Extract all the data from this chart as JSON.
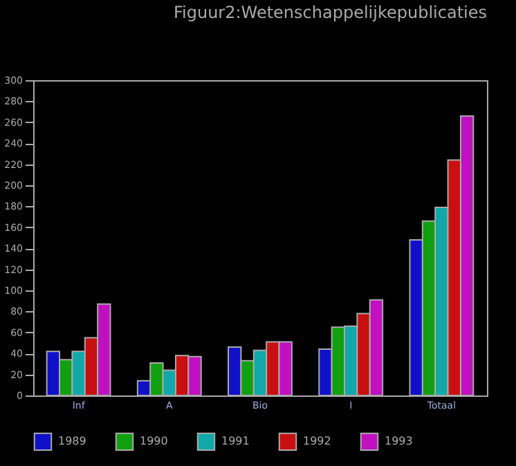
{
  "chart_data": {
    "type": "bar",
    "title": "Figuur2:Wetenschappelijkepublicaties",
    "categories": [
      "Inf",
      "A",
      "Bio",
      "I",
      "Totaal"
    ],
    "series": [
      {
        "name": "1989",
        "color": "#1010c8",
        "values": [
          42,
          14,
          46,
          44,
          148
        ]
      },
      {
        "name": "1990",
        "color": "#10a010",
        "values": [
          34,
          31,
          33,
          65,
          166
        ]
      },
      {
        "name": "1991",
        "color": "#10a8a8",
        "values": [
          42,
          24,
          43,
          66,
          179
        ]
      },
      {
        "name": "1992",
        "color": "#c81010",
        "values": [
          55,
          38,
          51,
          78,
          224
        ]
      },
      {
        "name": "1993",
        "color": "#c010c0",
        "values": [
          87,
          37,
          51,
          91,
          266
        ]
      }
    ],
    "ylim": [
      0,
      300
    ],
    "yticks": [
      0,
      20,
      40,
      60,
      80,
      100,
      120,
      140,
      160,
      180,
      200,
      220,
      240,
      260,
      280,
      300
    ],
    "grid": false,
    "legend": "bottom"
  }
}
